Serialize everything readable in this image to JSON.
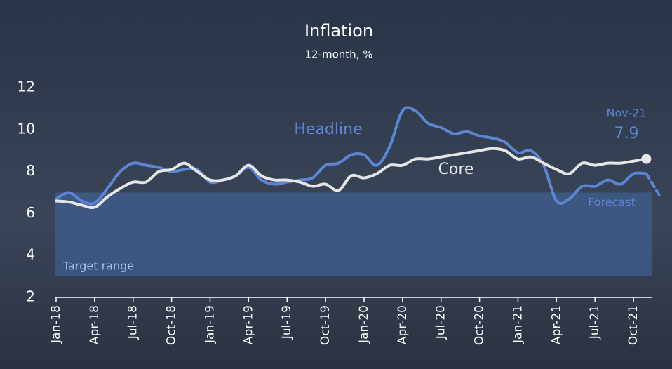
{
  "chart_data": {
    "type": "line",
    "title": "Inflation",
    "subtitle": "12-month, %",
    "categories": [
      "Jan-18",
      null,
      null,
      "Apr-18",
      null,
      null,
      "Jul-18",
      null,
      null,
      "Oct-18",
      null,
      null,
      "Jan-19",
      null,
      null,
      "Apr-19",
      null,
      null,
      "Jul-19",
      null,
      null,
      "Oct-19",
      null,
      null,
      "Jan-20",
      null,
      null,
      "Apr-20",
      null,
      null,
      "Jul-20",
      null,
      null,
      "Oct-20",
      null,
      null,
      "Jan-21",
      null,
      null,
      "Apr-21",
      null,
      null,
      "Jul-21",
      null,
      null,
      "Oct-21",
      null,
      null
    ],
    "series": [
      {
        "name": "Headline",
        "color": "#5b86d6",
        "values": [
          6.7,
          7.0,
          6.6,
          6.5,
          7.2,
          8.0,
          8.4,
          8.3,
          8.2,
          8.0,
          8.1,
          8.1,
          7.5,
          7.6,
          7.8,
          8.2,
          7.6,
          7.4,
          7.5,
          7.6,
          7.7,
          8.3,
          8.4,
          8.8,
          8.8,
          8.3,
          9.2,
          10.9,
          10.9,
          10.3,
          10.1,
          9.8,
          9.9,
          9.7,
          9.6,
          9.4,
          8.9,
          9.0,
          8.3,
          6.6,
          6.7,
          7.3,
          7.3,
          7.6,
          7.4,
          7.9,
          7.9,
          null
        ]
      },
      {
        "name": "Core",
        "color": "#e6e6e6",
        "values": [
          6.6,
          6.55,
          6.4,
          6.3,
          6.8,
          7.2,
          7.5,
          7.5,
          8.0,
          8.1,
          8.4,
          8.0,
          7.6,
          7.6,
          7.8,
          8.3,
          7.8,
          7.6,
          7.6,
          7.5,
          7.3,
          7.4,
          7.1,
          7.8,
          7.7,
          7.9,
          8.3,
          8.3,
          8.6,
          8.6,
          8.7,
          8.8,
          8.9,
          9.0,
          9.1,
          9.0,
          8.6,
          8.7,
          8.4,
          8.1,
          7.9,
          8.4,
          8.3,
          8.4,
          8.4,
          8.5,
          8.6,
          null
        ]
      },
      {
        "name": "Forecast",
        "color": "#5b86d6",
        "dashed": true,
        "values": [
          null,
          null,
          null,
          null,
          null,
          null,
          null,
          null,
          null,
          null,
          null,
          null,
          null,
          null,
          null,
          null,
          null,
          null,
          null,
          null,
          null,
          null,
          null,
          null,
          null,
          null,
          null,
          null,
          null,
          null,
          null,
          null,
          null,
          null,
          null,
          null,
          null,
          null,
          null,
          null,
          null,
          null,
          null,
          null,
          null,
          null,
          7.9,
          6.9
        ]
      }
    ],
    "target_range": {
      "label": "Target range",
      "values": [
        3,
        7
      ],
      "color": "#3f5d8f"
    },
    "annotations": [
      {
        "text": "Nov-21"
      }
    ],
    "ylim": [
      2,
      12
    ],
    "yticks": [
      2,
      4,
      6,
      8,
      10,
      12
    ]
  }
}
